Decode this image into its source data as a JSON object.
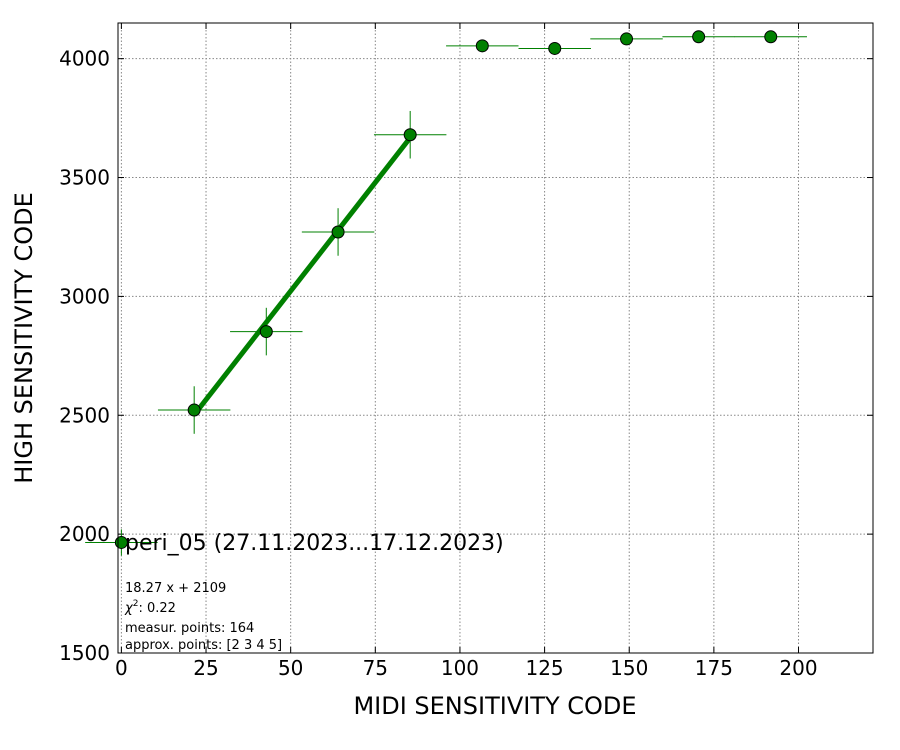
{
  "chart_data": {
    "type": "scatter",
    "xlabel": "MIDI SENSITIVITY CODE",
    "ylabel": "HIGH SENSITIVITY CODE",
    "xlim": [
      -1,
      222
    ],
    "ylim": [
      1500,
      4150
    ],
    "xticks": [
      0,
      25,
      50,
      75,
      100,
      125,
      150,
      175,
      200
    ],
    "yticks": [
      1500,
      2000,
      2500,
      3000,
      3500,
      4000
    ],
    "grid": true,
    "colors": {
      "points": "#008000",
      "edge": "#000000",
      "fit": "#008000"
    },
    "series": [
      {
        "points": [
          {
            "x": 0,
            "y": 1965,
            "xerr": 10.7,
            "yerr": 55
          },
          {
            "x": 21.5,
            "y": 2522,
            "xerr": 10.7,
            "yerr": 100
          },
          {
            "x": 42.8,
            "y": 2852,
            "xerr": 10.7,
            "yerr": 100
          },
          {
            "x": 64.0,
            "y": 3271,
            "xerr": 10.7,
            "yerr": 100
          },
          {
            "x": 85.3,
            "y": 3680,
            "xerr": 10.7,
            "yerr": 100
          },
          {
            "x": 106.6,
            "y": 4054,
            "xerr": 10.7,
            "yerr": 0
          },
          {
            "x": 128.0,
            "y": 4043,
            "xerr": 10.7,
            "yerr": 0
          },
          {
            "x": 149.2,
            "y": 4083,
            "xerr": 10.7,
            "yerr": 0
          },
          {
            "x": 170.5,
            "y": 4092,
            "xerr": 10.7,
            "yerr": 0
          },
          {
            "x": 191.8,
            "y": 4092,
            "xerr": 10.7,
            "yerr": 0
          }
        ]
      }
    ],
    "fit": {
      "slope": 18.27,
      "intercept": 2109,
      "x_from": 21.5,
      "x_to": 85.3
    },
    "annotations": {
      "title": "peri_05 (27.11.2023...17.12.2023)",
      "equation": "18.27 x + 2109",
      "chi_prefix": "χ",
      "chi_sup": "2",
      "chi_value": ": 0.22",
      "measur": "measur. points: 164",
      "approx": "approx. points: [2 3 4 5]"
    }
  }
}
